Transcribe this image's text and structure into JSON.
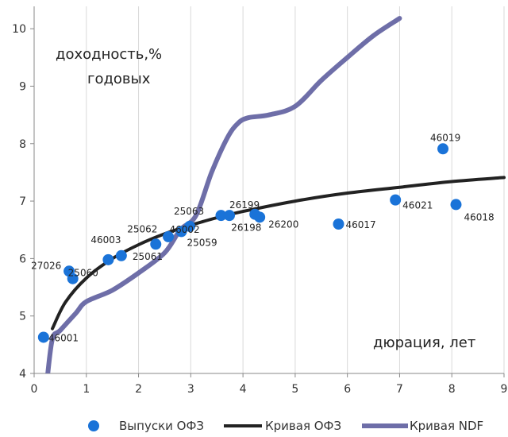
{
  "chart_data": {
    "type": "scatter",
    "title": "",
    "ylabel": "доходность,%\nгодовых",
    "xlabel": "дюрация, лет",
    "xlim": [
      0,
      9
    ],
    "ylim": [
      4,
      10.5
    ],
    "xticks": [
      0,
      1,
      2,
      3,
      4,
      5,
      6,
      7,
      8,
      9
    ],
    "yticks": [
      4,
      5,
      6,
      7,
      8,
      9,
      10
    ],
    "grid": "x-major-vertical",
    "legend_placement": "bottom",
    "colors": {
      "points": "#1a73d8",
      "ofz_curve": "#222222",
      "ndf_curve": "#6e6ea8"
    },
    "series": [
      {
        "name": "Выпуски ОФЗ",
        "kind": "scatter",
        "points": [
          {
            "x": 0.18,
            "y": 4.63,
            "label": "46001"
          },
          {
            "x": 0.67,
            "y": 5.78,
            "label": "27026"
          },
          {
            "x": 0.74,
            "y": 5.65,
            "label": "25060"
          },
          {
            "x": 1.42,
            "y": 5.98,
            "label": "46003"
          },
          {
            "x": 1.67,
            "y": 6.05,
            "label": "25061"
          },
          {
            "x": 2.33,
            "y": 6.25,
            "label": "25062"
          },
          {
            "x": 2.57,
            "y": 6.38,
            "label": ""
          },
          {
            "x": 2.82,
            "y": 6.47,
            "label": "25059"
          },
          {
            "x": 2.98,
            "y": 6.56,
            "label": "25063"
          },
          {
            "x": 3.58,
            "y": 6.75,
            "label": "46002"
          },
          {
            "x": 3.74,
            "y": 6.75,
            "label": "26199"
          },
          {
            "x": 4.23,
            "y": 6.77,
            "label": "26198"
          },
          {
            "x": 4.32,
            "y": 6.72,
            "label": "26200"
          },
          {
            "x": 5.83,
            "y": 6.6,
            "label": "46017"
          },
          {
            "x": 6.92,
            "y": 7.02,
            "label": "46021"
          },
          {
            "x": 7.83,
            "y": 7.91,
            "label": "46019"
          },
          {
            "x": 8.08,
            "y": 6.94,
            "label": "46018"
          }
        ]
      },
      {
        "name": "Кривая ОФЗ",
        "kind": "line",
        "x": [
          0.35,
          0.6,
          1.0,
          1.5,
          2.0,
          2.5,
          3.0,
          3.5,
          4.0,
          5.0,
          6.0,
          7.0,
          8.0,
          9.0
        ],
        "y": [
          4.78,
          5.24,
          5.66,
          6.0,
          6.24,
          6.43,
          6.58,
          6.71,
          6.82,
          7.0,
          7.14,
          7.24,
          7.34,
          7.41
        ]
      },
      {
        "name": "Кривая NDF",
        "kind": "line",
        "x": [
          0.25,
          0.35,
          0.5,
          0.8,
          1.0,
          1.5,
          2.0,
          2.5,
          2.8,
          3.1,
          3.4,
          3.7,
          3.9,
          4.1,
          4.5,
          5.0,
          5.5,
          6.0,
          6.5,
          7.0
        ],
        "y": [
          3.9,
          4.6,
          4.75,
          5.05,
          5.25,
          5.45,
          5.75,
          6.1,
          6.5,
          6.75,
          7.5,
          8.1,
          8.35,
          8.45,
          8.5,
          8.65,
          9.1,
          9.5,
          9.88,
          10.18
        ]
      }
    ],
    "annotations": {
      "y_title_line1": "доходность,%",
      "y_title_line2": "годовых",
      "x_title": "дюрация, лет"
    },
    "legend": [
      "Выпуски ОФЗ",
      "Кривая ОФЗ",
      "Кривая NDF"
    ]
  }
}
